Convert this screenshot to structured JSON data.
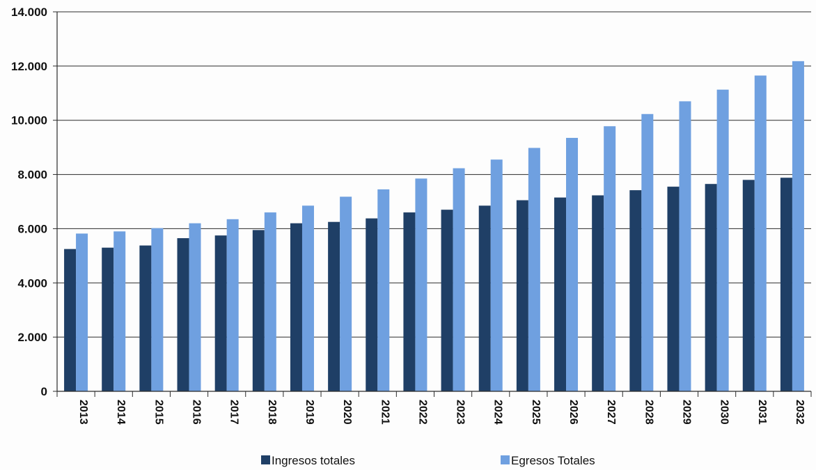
{
  "chart_data": {
    "type": "bar",
    "title": "",
    "xlabel": "",
    "ylabel": "",
    "ylim": [
      0,
      14000
    ],
    "y_ticks": [
      0,
      2000,
      4000,
      6000,
      8000,
      10000,
      12000,
      14000
    ],
    "y_tick_labels": [
      "0",
      "2.000",
      "4.000",
      "6.000",
      "8.000",
      "10.000",
      "12.000",
      "14.000"
    ],
    "grid": true,
    "legend_position": "bottom",
    "categories": [
      "2013",
      "2014",
      "2015",
      "2016",
      "2017",
      "2018",
      "2019",
      "2020",
      "2021",
      "2022",
      "2023",
      "2024",
      "2025",
      "2026",
      "2027",
      "2028",
      "2029",
      "2030",
      "2031",
      "2032"
    ],
    "series": [
      {
        "name": "Ingresos totales",
        "color": "#1f3f66",
        "values": [
          5250,
          5300,
          5380,
          5650,
          5750,
          5950,
          6200,
          6250,
          6380,
          6600,
          6700,
          6850,
          7050,
          7150,
          7230,
          7420,
          7550,
          7650,
          7800,
          7880
        ]
      },
      {
        "name": "Egresos Totales",
        "color": "#6fa0e0",
        "values": [
          5820,
          5900,
          6020,
          6200,
          6350,
          6600,
          6850,
          7180,
          7450,
          7850,
          8230,
          8550,
          8980,
          9350,
          9780,
          10230,
          10700,
          11130,
          11650,
          12180
        ]
      }
    ]
  }
}
